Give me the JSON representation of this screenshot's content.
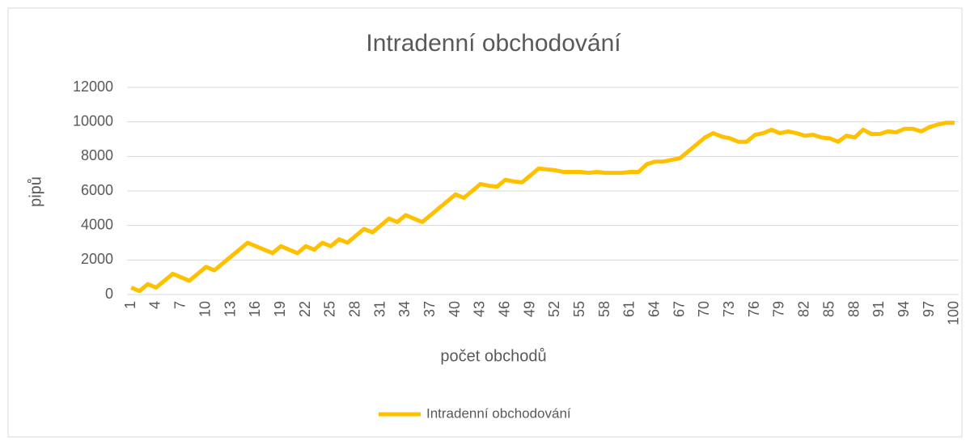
{
  "chart_data": {
    "type": "line",
    "title": "Intradenní obchodování",
    "xlabel": "počet obchodů",
    "ylabel": "pipů",
    "categories": [
      "1",
      null,
      null,
      "4",
      null,
      null,
      "7",
      null,
      null,
      "10",
      null,
      null,
      "13",
      null,
      null,
      "16",
      null,
      null,
      "19",
      null,
      null,
      "22",
      null,
      null,
      "25",
      null,
      null,
      "28",
      null,
      null,
      "31",
      null,
      null,
      "34",
      null,
      null,
      "37",
      null,
      null,
      "40",
      null,
      null,
      "43",
      null,
      null,
      "46",
      null,
      null,
      "49",
      null,
      null,
      "52",
      null,
      null,
      "55",
      null,
      null,
      "58",
      null,
      null,
      "61",
      null,
      null,
      "64",
      null,
      null,
      "67",
      null,
      null,
      "70",
      null,
      null,
      "73",
      null,
      null,
      "76",
      null,
      null,
      "79",
      null,
      null,
      "82",
      null,
      null,
      "85",
      null,
      null,
      "88",
      null,
      null,
      "91",
      null,
      null,
      "94",
      null,
      null,
      "97",
      null,
      null,
      "100"
    ],
    "series": [
      {
        "name": "Intradenní obchodování",
        "color": "#ffc000",
        "values": [
          400,
          200,
          600,
          400,
          800,
          1200,
          1000,
          800,
          1200,
          1600,
          1400,
          1800,
          2200,
          2600,
          3000,
          2800,
          2600,
          2400,
          2800,
          2600,
          2400,
          2800,
          2600,
          3000,
          2800,
          3200,
          3000,
          3400,
          3800,
          3600,
          4000,
          4400,
          4200,
          4600,
          4400,
          4200,
          4600,
          5000,
          5400,
          5800,
          5600,
          6000,
          6400,
          6300,
          6250,
          6650,
          6550,
          6500,
          6900,
          7300,
          7250,
          7200,
          7100,
          7100,
          7100,
          7050,
          7100,
          7050,
          7050,
          7050,
          7100,
          7100,
          7550,
          7700,
          7700,
          7800,
          7900,
          8300,
          8700,
          9100,
          9350,
          9150,
          9050,
          8850,
          8850,
          9250,
          9350,
          9550,
          9350,
          9450,
          9350,
          9200,
          9250,
          9100,
          9050,
          8850,
          9200,
          9100,
          9550,
          9300,
          9300,
          9450,
          9400,
          9600,
          9600,
          9450,
          9700,
          9850,
          9950,
          9950
        ]
      }
    ],
    "ylim": [
      0,
      12000
    ],
    "yticks": [
      0,
      2000,
      4000,
      6000,
      8000,
      10000,
      12000
    ],
    "grid": true,
    "legend": "bottom"
  }
}
